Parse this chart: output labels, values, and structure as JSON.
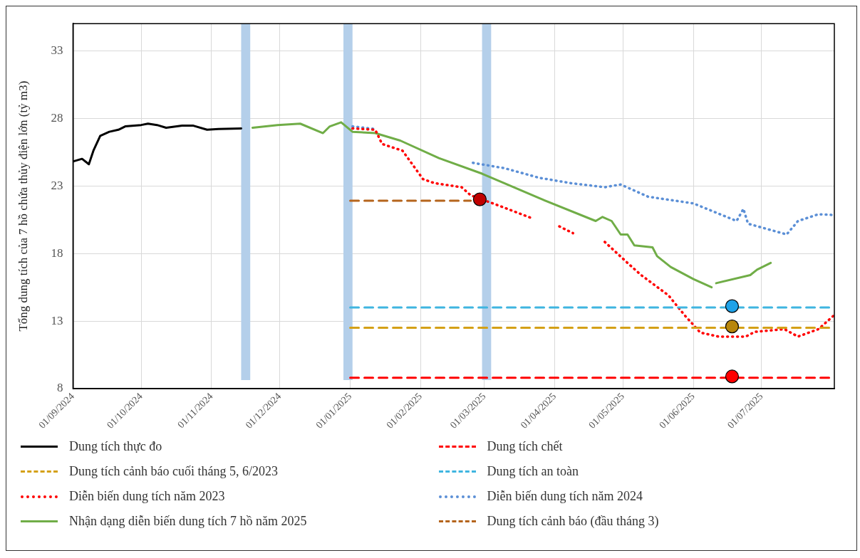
{
  "chart_data": {
    "type": "line",
    "ylabel": "Tổng dung tích của 7 hồ chứa thủy điện lớn (tỷ m3)",
    "xlim": [
      "2024-09-01",
      "2025-08-02"
    ],
    "xticks": [
      {
        "value": "2024-09-01",
        "label": "01/09/2024"
      },
      {
        "value": "2024-10-01",
        "label": "01/10/2024"
      },
      {
        "value": "2024-11-01",
        "label": "01/11/2024"
      },
      {
        "value": "2024-12-01",
        "label": "01/12/2024"
      },
      {
        "value": "2025-01-01",
        "label": "01/01/2025"
      },
      {
        "value": "2025-02-01",
        "label": "01/02/2025"
      },
      {
        "value": "2025-03-01",
        "label": "01/03/2025"
      },
      {
        "value": "2025-04-01",
        "label": "01/04/2025"
      },
      {
        "value": "2025-05-01",
        "label": "01/05/2025"
      },
      {
        "value": "2025-06-01",
        "label": "01/06/2025"
      },
      {
        "value": "2025-07-01",
        "label": "01/07/2025"
      }
    ],
    "ylim": [
      8,
      35
    ],
    "yticks": [
      8,
      13,
      18,
      23,
      28,
      33
    ],
    "grid": true,
    "legend": "bottom",
    "marker": "none",
    "bands": [
      {
        "axis": "x",
        "from": "2024-11-14",
        "to": "2024-11-18",
        "color": "#b4cfea"
      },
      {
        "axis": "x",
        "from": "2024-12-29",
        "to": "2025-01-02",
        "color": "#b4cfea"
      },
      {
        "axis": "x",
        "from": "2025-02-28",
        "to": "2025-03-04",
        "color": "#b4cfea"
      }
    ],
    "series": [
      {
        "name": "Dung tích thực đo",
        "color": "#000000",
        "line_style": "solid",
        "x": [
          "2024-09-01",
          "2024-09-05",
          "2024-09-08",
          "2024-09-10",
          "2024-09-13",
          "2024-09-17",
          "2024-09-21",
          "2024-09-24",
          "2024-10-01",
          "2024-10-04",
          "2024-10-08",
          "2024-10-12",
          "2024-10-19",
          "2024-10-24",
          "2024-10-30",
          "2024-11-04",
          "2024-11-14"
        ],
        "values": [
          24.8,
          25.0,
          24.6,
          25.6,
          26.7,
          27.0,
          27.15,
          27.4,
          27.5,
          27.6,
          27.5,
          27.3,
          27.45,
          27.45,
          27.15,
          27.2,
          27.25
        ]
      },
      {
        "name": "Dung tích chết",
        "color": "#ff0000",
        "line_style": "dashed",
        "x": [
          "2025-01-01",
          "2025-08-02"
        ],
        "values": [
          8.8,
          8.8
        ]
      },
      {
        "name": "Dung tích cảnh báo cuối tháng 5, 6/2023",
        "color": "#d4a017",
        "line_style": "dashed",
        "x": [
          "2025-01-01",
          "2025-08-02"
        ],
        "values": [
          12.5,
          12.5
        ]
      },
      {
        "name": "Dung tích an toàn",
        "color": "#3fb5e0",
        "line_style": "dashed",
        "x": [
          "2025-01-01",
          "2025-08-02"
        ],
        "values": [
          14.0,
          14.0
        ]
      },
      {
        "name": "Diễn biến dung tích năm 2023",
        "color": "#ff0000",
        "line_style": "dotted",
        "x": [
          "2025-01-02",
          "2025-01-12",
          "2025-01-15",
          "2025-01-24",
          "2025-02-02",
          "2025-02-07",
          "2025-02-19",
          "2025-02-23",
          "2025-03-08",
          "2025-03-22",
          "2025-03-28",
          "2025-04-03",
          "2025-04-09",
          "2025-04-16",
          "2025-04-23",
          "2025-05-03",
          "2025-05-09",
          "2025-05-21",
          "2025-05-28",
          "2025-06-04",
          "2025-06-12",
          "2025-06-24",
          "2025-06-28",
          "2025-07-11",
          "2025-07-17",
          "2025-07-26",
          "2025-08-02"
        ],
        "values": [
          27.25,
          27.15,
          26.1,
          25.6,
          23.5,
          23.2,
          22.9,
          22.3,
          21.5,
          20.6,
          null,
          20.0,
          19.5,
          null,
          18.85,
          17.3,
          16.4,
          14.9,
          13.45,
          12.15,
          11.85,
          11.85,
          12.2,
          12.4,
          11.85,
          12.4,
          13.45
        ]
      },
      {
        "name": "Diễn biến dung tích năm 2024",
        "color": "#5b8fd6",
        "line_style": "dotted",
        "x": [
          "2025-01-02",
          "2025-01-12",
          "2025-01-24",
          "2025-02-24",
          "2025-03-10",
          "2025-03-25",
          "2025-04-08",
          "2025-04-23",
          "2025-04-30",
          "2025-05-12",
          "2025-06-01",
          "2025-06-20",
          "2025-06-23",
          "2025-06-25",
          "2025-07-10",
          "2025-07-12",
          "2025-07-17",
          "2025-07-26",
          "2025-08-01"
        ],
        "values": [
          27.4,
          27.2,
          null,
          24.7,
          24.3,
          23.6,
          23.2,
          22.9,
          23.1,
          22.2,
          21.7,
          20.4,
          21.3,
          20.2,
          19.5,
          19.4,
          20.4,
          20.9,
          20.85
        ]
      },
      {
        "name": "Nhận dạng diễn biến dung tích 7 hồ năm 2025",
        "color": "#70ad47",
        "line_style": "solid",
        "x": [
          "2024-11-19",
          "2024-11-30",
          "2024-12-10",
          "2024-12-20",
          "2024-12-23",
          "2024-12-28",
          "2025-01-02",
          "2025-01-12",
          "2025-01-23",
          "2025-02-09",
          "2025-02-28",
          "2025-03-25",
          "2025-04-19",
          "2025-04-22",
          "2025-04-26",
          "2025-04-30",
          "2025-05-03",
          "2025-05-06",
          "2025-05-14",
          "2025-05-16",
          "2025-05-22",
          "2025-06-01",
          "2025-06-09",
          "2025-06-10",
          "2025-06-11",
          "2025-06-26",
          "2025-06-29",
          "2025-07-05"
        ],
        "values": [
          27.3,
          27.5,
          27.6,
          26.9,
          27.4,
          27.7,
          27.0,
          26.9,
          26.35,
          25.05,
          23.9,
          22.1,
          20.4,
          20.7,
          20.4,
          19.4,
          19.4,
          18.6,
          18.45,
          17.8,
          17.0,
          16.1,
          15.5,
          null,
          15.8,
          16.4,
          16.8,
          17.3
        ]
      },
      {
        "name": "Dung tích cảnh báo (đầu tháng 3)",
        "color": "#b5651d",
        "line_style": "dashed",
        "x": [
          "2025-01-01",
          "2025-02-23"
        ],
        "values": [
          21.9,
          21.9
        ]
      },
      {
        "type": "scatter",
        "marker": "circle",
        "x": [
          "2025-02-27",
          "2025-06-18",
          "2025-06-18",
          "2025-06-18"
        ],
        "values": [
          22.0,
          14.1,
          12.6,
          8.9
        ],
        "colors": [
          "#c00000",
          "#1fa2e8",
          "#b8860b",
          "#ff0000"
        ]
      }
    ]
  }
}
